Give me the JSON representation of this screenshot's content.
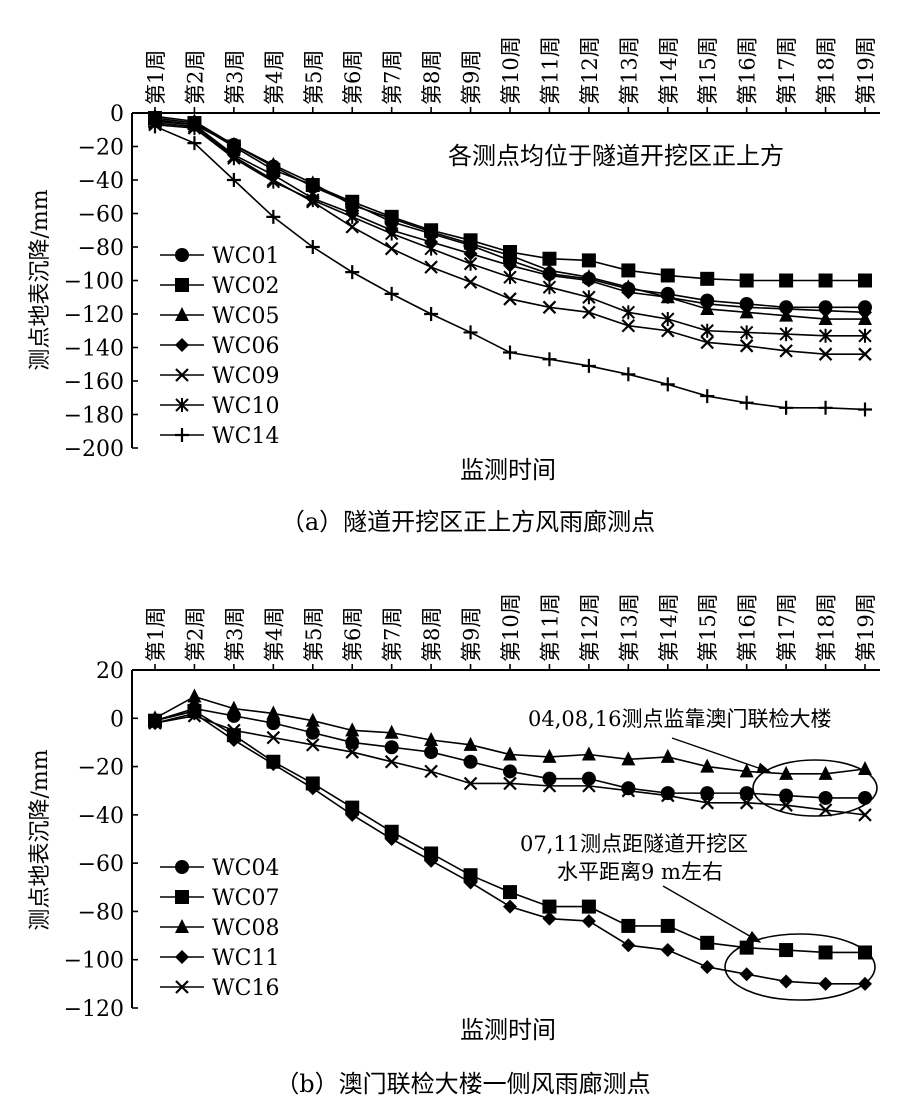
{
  "chart_data": [
    {
      "type": "line",
      "x": [
        "第1周",
        "第2周",
        "第3周",
        "第4周",
        "第5周",
        "第6周",
        "第7周",
        "第8周",
        "第9周",
        "第10周",
        "第11周",
        "第12周",
        "第13周",
        "第14周",
        "第15周",
        "第16周",
        "第17周",
        "第18周",
        "第19周"
      ],
      "xlabel": "监测时间",
      "ylabel": "测点地表沉降/mm",
      "ylim": [
        -200,
        0
      ],
      "yticks": [
        0,
        -20,
        -40,
        -60,
        -80,
        -100,
        -120,
        -140,
        -160,
        -180,
        -200
      ],
      "ytick_labels": [
        "0",
        "−20",
        "−40",
        "−60",
        "−80",
        "−100",
        "−120",
        "−140",
        "−160",
        "−180",
        "−200"
      ],
      "caption": "（a）隧道开挖区正上方风雨廊测点",
      "annotations": [
        "各测点均位于隧道开挖区正上方"
      ],
      "legend_position": "left",
      "grid": false,
      "series": [
        {
          "name": "WC01",
          "marker": "circle",
          "values": [
            -4,
            -7,
            -19,
            -32,
            -44,
            -54,
            -65,
            -72,
            -79,
            -88,
            -96,
            -99,
            -105,
            -108,
            -112,
            -114,
            -116,
            -116,
            -116
          ]
        },
        {
          "name": "WC02",
          "marker": "square",
          "values": [
            -3,
            -6,
            -20,
            -34,
            -43,
            -53,
            -62,
            -70,
            -76,
            -83,
            -87,
            -88,
            -94,
            -97,
            -99,
            -100,
            -100,
            -100,
            -100
          ]
        },
        {
          "name": "WC05",
          "marker": "triangle",
          "values": [
            -2,
            -5,
            -19,
            -31,
            -42,
            -55,
            -63,
            -71,
            -78,
            -85,
            -94,
            -98,
            -104,
            -110,
            -117,
            -119,
            -121,
            -123,
            -123
          ]
        },
        {
          "name": "WC06",
          "marker": "diamond",
          "values": [
            -5,
            -7,
            -25,
            -37,
            -51,
            -60,
            -70,
            -77,
            -84,
            -91,
            -97,
            -100,
            -107,
            -110,
            -114,
            -116,
            -117,
            -118,
            -119
          ]
        },
        {
          "name": "WC09",
          "marker": "x",
          "values": [
            -6,
            -8,
            -26,
            -40,
            -53,
            -68,
            -81,
            -92,
            -101,
            -111,
            -116,
            -119,
            -127,
            -130,
            -137,
            -139,
            -142,
            -144,
            -144
          ]
        },
        {
          "name": "WC10",
          "marker": "asterisk",
          "values": [
            -7,
            -9,
            -27,
            -41,
            -52,
            -62,
            -72,
            -81,
            -90,
            -98,
            -104,
            -110,
            -119,
            -123,
            -130,
            -131,
            -132,
            -133,
            -133
          ]
        },
        {
          "name": "WC14",
          "marker": "plus",
          "values": [
            -8,
            -18,
            -40,
            -62,
            -80,
            -95,
            -108,
            -120,
            -131,
            -143,
            -147,
            -151,
            -156,
            -162,
            -169,
            -173,
            -176,
            -176,
            -177
          ]
        }
      ]
    },
    {
      "type": "line",
      "x": [
        "第1周",
        "第2周",
        "第3周",
        "第4周",
        "第5周",
        "第6周",
        "第7周",
        "第8周",
        "第9周",
        "第10周",
        "第11周",
        "第12周",
        "第13周",
        "第14周",
        "第15周",
        "第16周",
        "第17周",
        "第18周",
        "第19周"
      ],
      "xlabel": "监测时间",
      "ylabel": "测点地表沉降/mm",
      "ylim": [
        -120,
        20
      ],
      "yticks": [
        20,
        0,
        -20,
        -40,
        -60,
        -80,
        -100,
        -120
      ],
      "ytick_labels": [
        "20",
        "0",
        "−20",
        "−40",
        "−60",
        "−80",
        "−100",
        "−120"
      ],
      "caption": "（b）澳门联检大楼一侧风雨廊测点",
      "annotations": [
        "04,08,16测点监靠澳门联检大楼",
        "07,11测点距隧道开挖区",
        "水平距离9 m左右"
      ],
      "legend_position": "bottom-left",
      "grid": false,
      "series": [
        {
          "name": "WC04",
          "marker": "circle",
          "values": [
            -1,
            4,
            1,
            -2,
            -6,
            -10,
            -12,
            -14,
            -18,
            -22,
            -25,
            -25,
            -29,
            -31,
            -31,
            -31,
            -32,
            -33,
            -33
          ]
        },
        {
          "name": "WC07",
          "marker": "square",
          "values": [
            -1,
            3,
            -7,
            -18,
            -27,
            -37,
            -47,
            -56,
            -65,
            -72,
            -78,
            -78,
            -86,
            -86,
            -93,
            -95,
            -96,
            -97,
            -97
          ]
        },
        {
          "name": "WC08",
          "marker": "triangle",
          "values": [
            0,
            9,
            4,
            2,
            -1,
            -5,
            -6,
            -9,
            -11,
            -15,
            -16,
            -15,
            -17,
            -16,
            -20,
            -22,
            -23,
            -23,
            -21
          ]
        },
        {
          "name": "WC11",
          "marker": "diamond",
          "values": [
            -2,
            2,
            -9,
            -19,
            -29,
            -40,
            -50,
            -59,
            -68,
            -78,
            -83,
            -84,
            -94,
            -96,
            -103,
            -106,
            -109,
            -110,
            -110
          ]
        },
        {
          "name": "WC16",
          "marker": "x",
          "values": [
            -2,
            1,
            -5,
            -8,
            -11,
            -14,
            -18,
            -22,
            -27,
            -27,
            -28,
            -28,
            -30,
            -32,
            -35,
            -35,
            -36,
            -38,
            -40
          ]
        }
      ]
    }
  ]
}
